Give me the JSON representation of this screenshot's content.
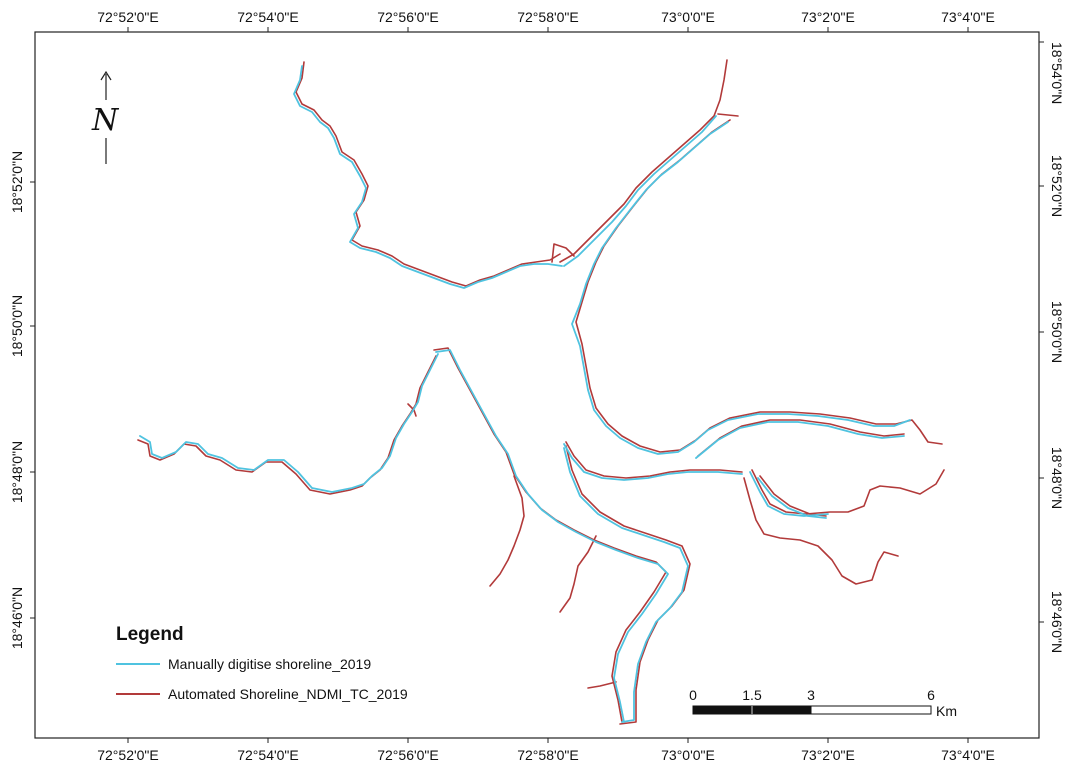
{
  "colors": {
    "manual": "#4FC3E0",
    "automated": "#B23A3A",
    "frame": "#222222"
  },
  "top_ticks": [
    "72°52'0\"E",
    "72°54'0\"E",
    "72°56'0\"E",
    "72°58'0\"E",
    "73°0'0\"E",
    "73°2'0\"E",
    "73°4'0\"E"
  ],
  "bottom_ticks": [
    "72°52'0\"E",
    "72°54'0\"E",
    "72°56'0\"E",
    "72°58'0\"E",
    "73°0'0\"E",
    "73°2'0\"E",
    "73°4'0\"E"
  ],
  "left_ticks": [
    "18°52'0\"N",
    "18°50'0\"N",
    "18°48'0\"N",
    "18°46'0\"N"
  ],
  "right_ticks": [
    "18°54'0\"N",
    "18°52'0\"N",
    "18°50'0\"N",
    "18°48'0\"N",
    "18°46'0\"N"
  ],
  "north": {
    "letter": "N",
    "icon": "north-arrow-icon"
  },
  "legend": {
    "title": "Legend",
    "items": [
      {
        "label": "Manually digitise shoreline_2019"
      },
      {
        "label": "Automated Shoreline_NDMI_TC_2019"
      }
    ]
  },
  "scalebar": {
    "labels": [
      "0",
      "1.5",
      "3",
      "6"
    ],
    "unit": "Km"
  }
}
